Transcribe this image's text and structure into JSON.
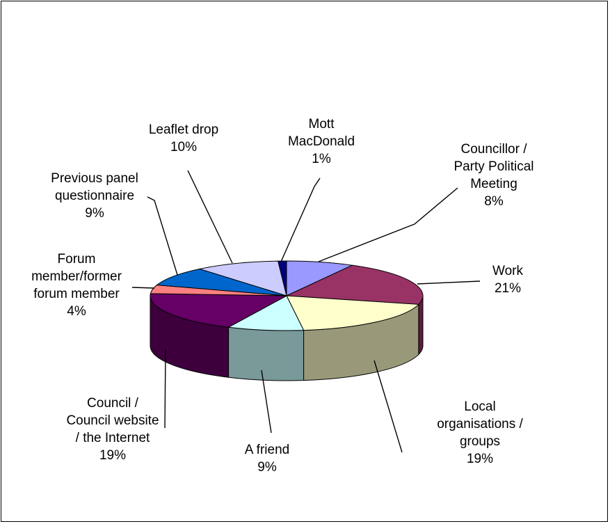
{
  "chart_data": {
    "type": "pie",
    "style": "3d-exploded-free",
    "title": "",
    "slices": [
      {
        "label": "Councillor / Party Political Meeting",
        "lines": [
          "Councillor /",
          "Party Political",
          "Meeting",
          "8%"
        ],
        "value": 8,
        "percent_label": "8%",
        "color": "#9999FF"
      },
      {
        "label": "Work",
        "lines": [
          "Work",
          "21%"
        ],
        "value": 21,
        "percent_label": "21%",
        "color": "#993366"
      },
      {
        "label": "Local organisations / groups",
        "lines": [
          "Local",
          "organisations /",
          "groups",
          "19%"
        ],
        "value": 19,
        "percent_label": "19%",
        "color": "#FFFFCC"
      },
      {
        "label": "A friend",
        "lines": [
          "A friend",
          "9%"
        ],
        "value": 9,
        "percent_label": "9%",
        "color": "#CCFFFF"
      },
      {
        "label": "Council / Council website / the Internet",
        "lines": [
          "Council /",
          "Council website",
          "/ the Internet",
          "19%"
        ],
        "value": 19,
        "percent_label": "19%",
        "color": "#660066"
      },
      {
        "label": "Forum member/former forum member",
        "lines": [
          "Forum",
          "member/former",
          "forum member",
          "4%"
        ],
        "value": 4,
        "percent_label": "4%",
        "color": "#FF8080"
      },
      {
        "label": "Previous panel questionnaire",
        "lines": [
          "Previous panel",
          "questionnaire",
          "9%"
        ],
        "value": 9,
        "percent_label": "9%",
        "color": "#0066CC"
      },
      {
        "label": "Leaflet drop",
        "lines": [
          "Leaflet drop",
          "10%"
        ],
        "value": 10,
        "percent_label": "10%",
        "color": "#CCCCFF"
      },
      {
        "label": "Mott MacDonald",
        "lines": [
          "Mott",
          "MacDonald",
          "1%"
        ],
        "value": 1,
        "percent_label": "1%",
        "color": "#000080"
      }
    ],
    "legend": "none"
  }
}
